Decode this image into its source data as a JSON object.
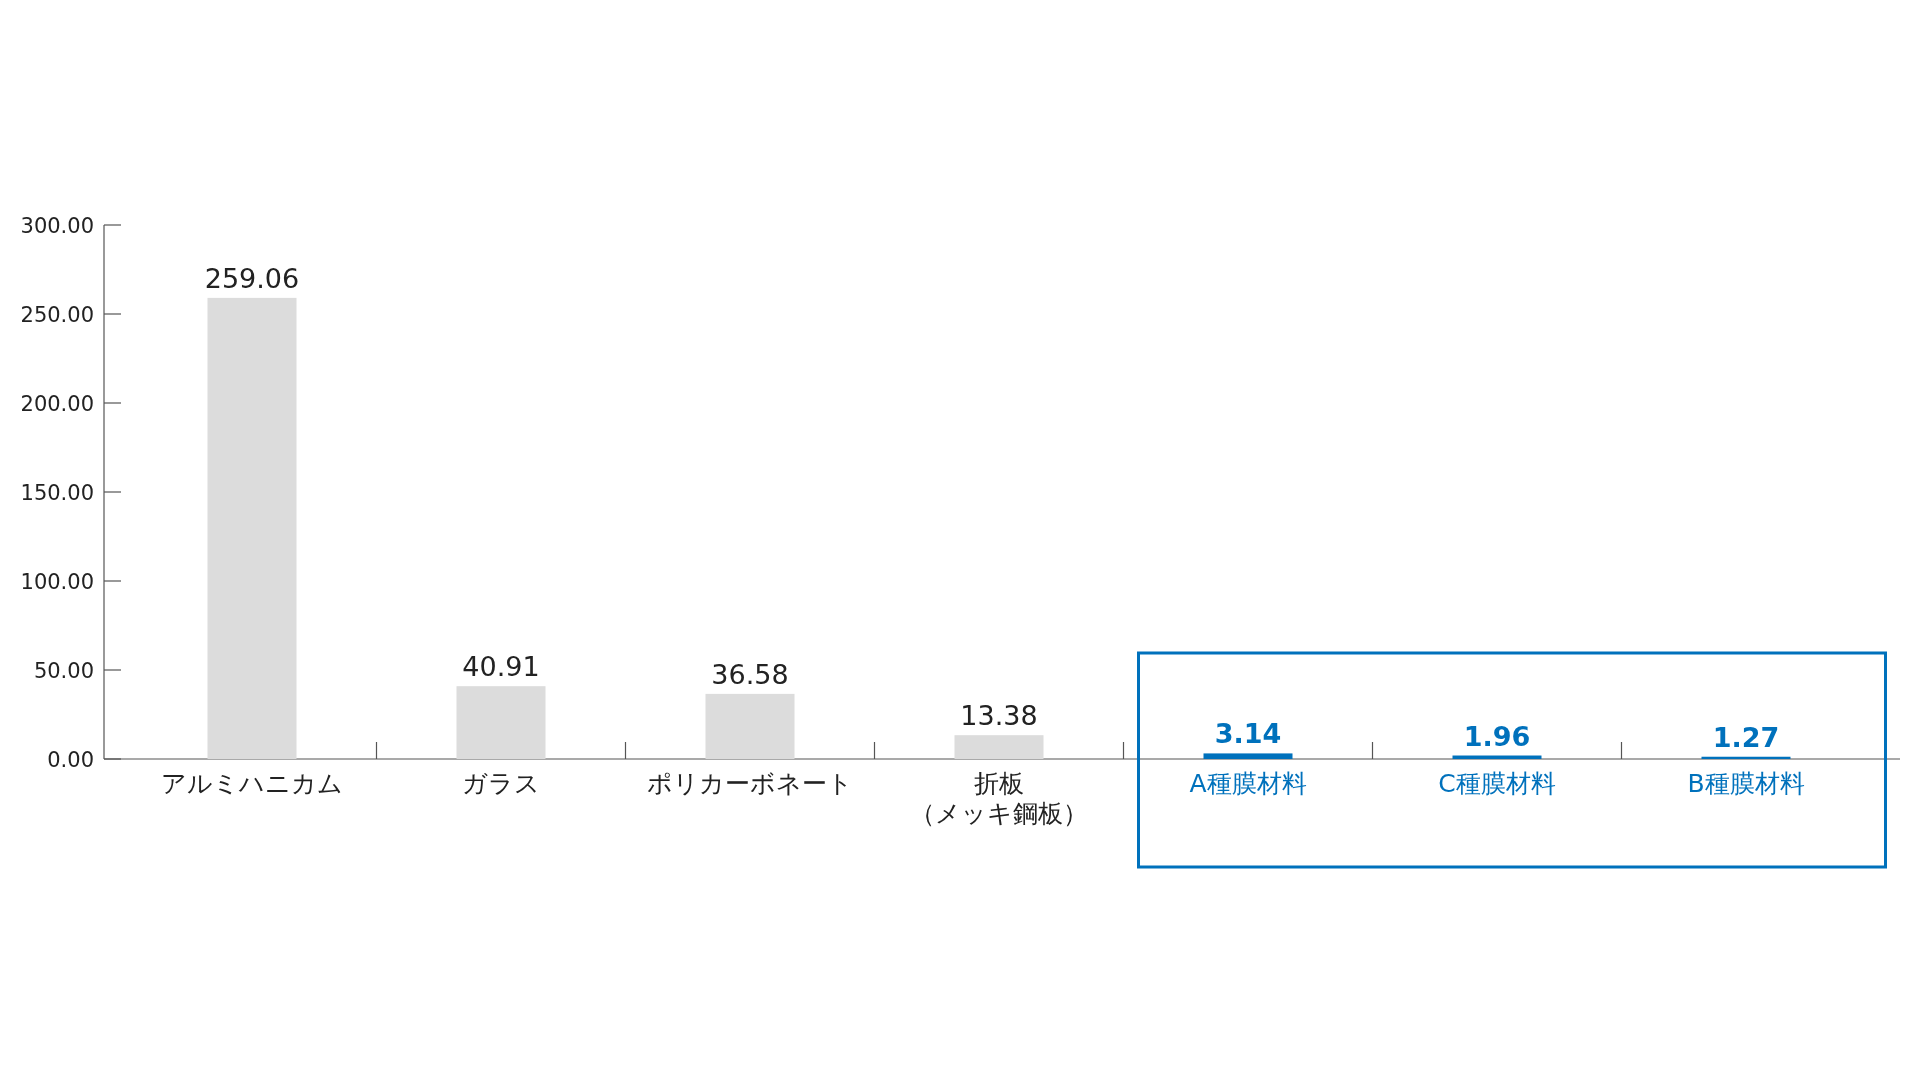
{
  "chart_data": {
    "type": "bar",
    "categories": [
      "アルミハニカム",
      "ガラス",
      "ポリカーボネート",
      "折板（メッキ鋼板）",
      "A種膜材料",
      "C種膜材料",
      "B種膜材料"
    ],
    "values": [
      259.06,
      40.91,
      36.58,
      13.38,
      3.14,
      1.96,
      1.27
    ],
    "colors": [
      "#dcdcdc",
      "#dcdcdc",
      "#dcdcdc",
      "#dcdcdc",
      "#0071bc",
      "#0071bc",
      "#0071bc"
    ],
    "ylim": [
      0,
      300
    ],
    "yticks": [
      {
        "value": 0,
        "label": "0.00"
      },
      {
        "value": 50,
        "label": "50.00"
      },
      {
        "value": 100,
        "label": "100.00"
      },
      {
        "value": 150,
        "label": "150.00"
      },
      {
        "value": 200,
        "label": "200.00"
      },
      {
        "value": 250,
        "label": "250.00"
      },
      {
        "value": 300,
        "label": "300.00"
      }
    ],
    "data_labels": true
  }
}
